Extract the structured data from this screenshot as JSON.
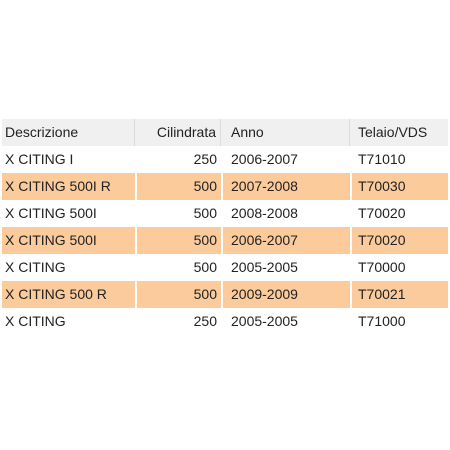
{
  "table": {
    "header": [
      "Descrizione",
      "Cilindrata",
      "Anno",
      "Telaio/VDS"
    ],
    "rows": [
      [
        "X CITING I",
        250,
        "2006-2007",
        "T71010"
      ],
      [
        "X CITING 500I R",
        500,
        "2007-2008",
        "T70030"
      ],
      [
        "X CITING 500I",
        500,
        "2008-2008",
        "T70020"
      ],
      [
        "X CITING 500I",
        500,
        "2006-2007",
        "T70020"
      ],
      [
        "X CITING",
        500,
        "2005-2005",
        "T70000"
      ],
      [
        "X CITING 500 R",
        500,
        "2009-2009",
        "T70021"
      ],
      [
        "X CITING",
        250,
        "2005-2005",
        "T71000"
      ]
    ]
  }
}
